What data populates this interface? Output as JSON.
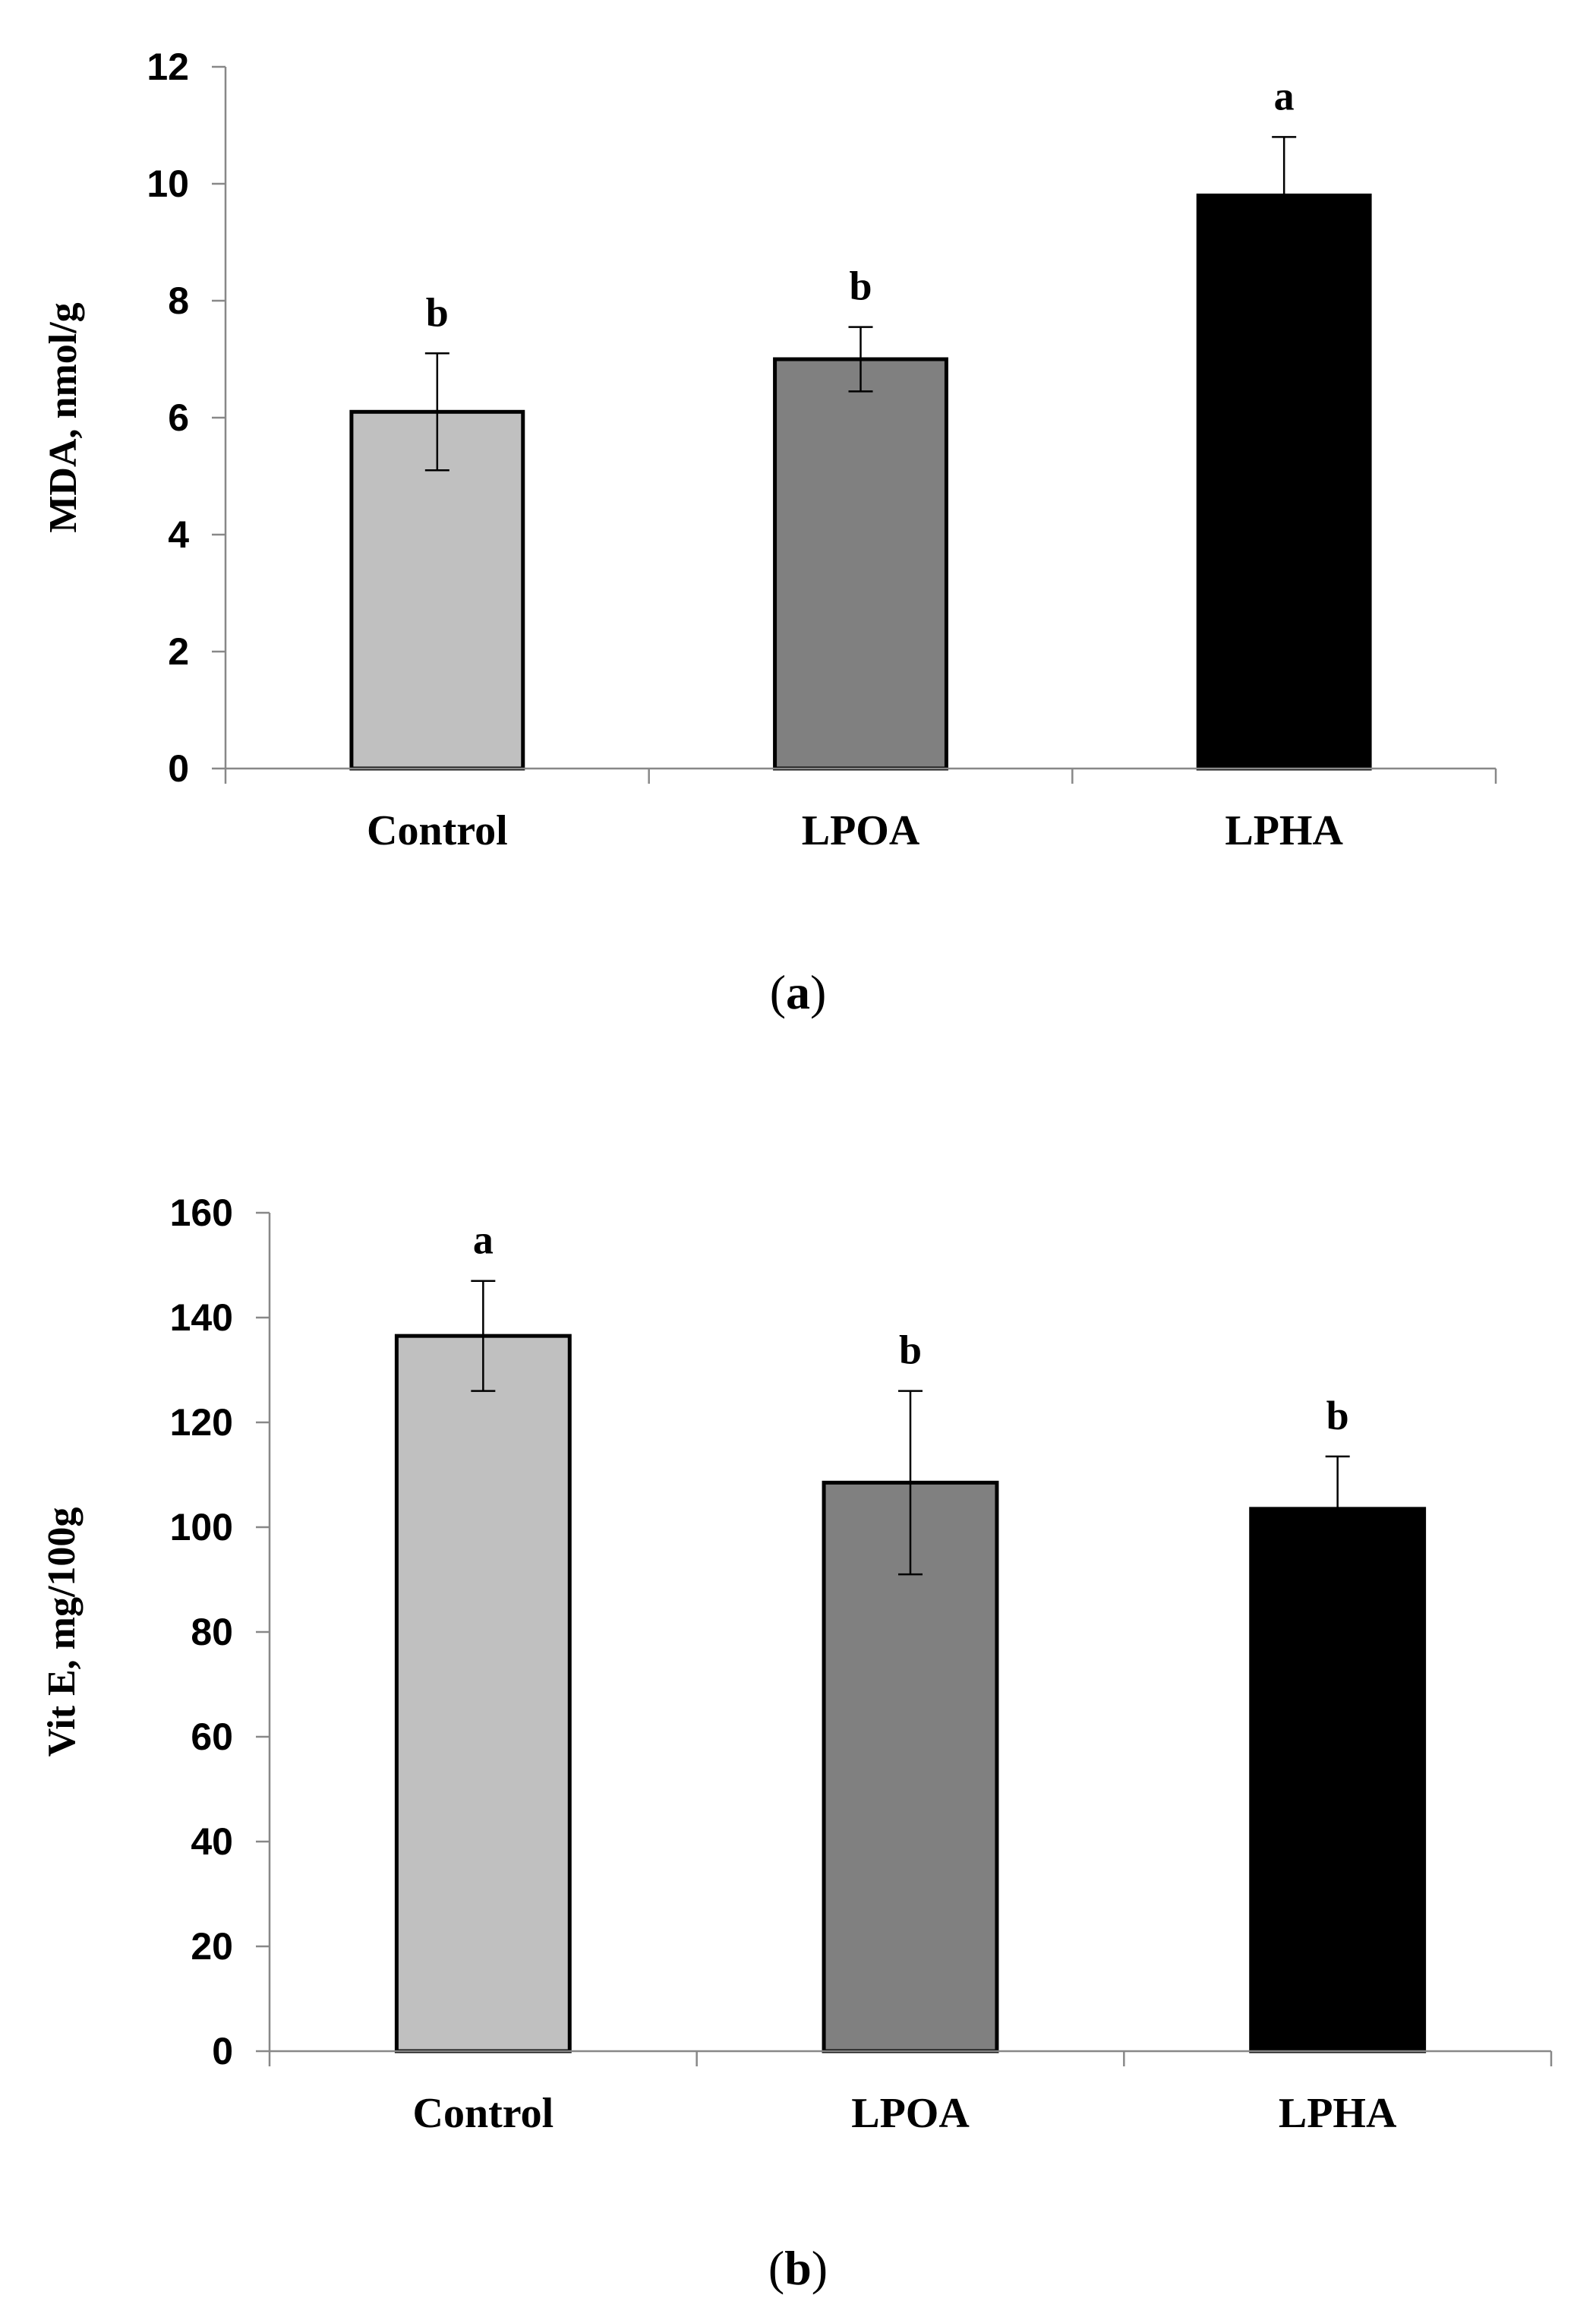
{
  "chart_data": [
    {
      "type": "bar",
      "panel_label": "a",
      "categories": [
        "Control",
        "LPOA",
        "LPHA"
      ],
      "values": [
        6.1,
        7.0,
        9.8
      ],
      "errors": [
        1.0,
        0.55,
        1.0
      ],
      "significance": [
        "b",
        "b",
        "a"
      ],
      "colors": [
        "#c0c0c0",
        "#808080",
        "#000000"
      ],
      "ylabel": "MDA, nmol/g",
      "xlabel": "",
      "ylim": [
        0,
        12
      ],
      "yticks": [
        0,
        2,
        4,
        6,
        8,
        10,
        12
      ]
    },
    {
      "type": "bar",
      "panel_label": "b",
      "categories": [
        "Control",
        "LPOA",
        "LPHA"
      ],
      "values": [
        136.5,
        108.5,
        103.5
      ],
      "errors": [
        10.5,
        17.5,
        10.0
      ],
      "significance": [
        "a",
        "b",
        "b"
      ],
      "colors": [
        "#c0c0c0",
        "#808080",
        "#000000"
      ],
      "ylabel": "Vit E, mg/100g",
      "xlabel": "",
      "ylim": [
        0,
        160
      ],
      "yticks": [
        0,
        20,
        40,
        60,
        80,
        100,
        120,
        140,
        160
      ]
    }
  ]
}
